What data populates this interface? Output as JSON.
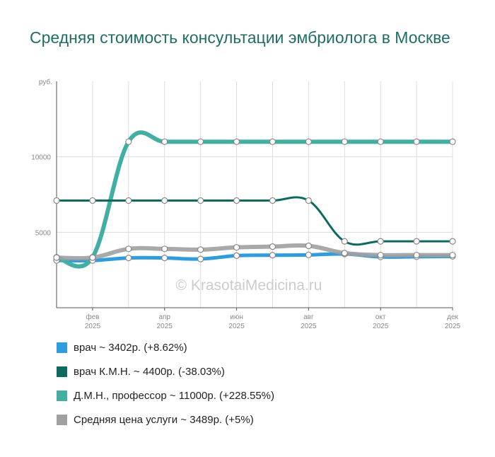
{
  "chart_data": {
    "type": "line",
    "title": "Средняя стоимость консультации эмбриолога в Москве",
    "ylabel": "руб.",
    "ylim": [
      0,
      15000
    ],
    "yticks": [
      5000,
      10000
    ],
    "x_ticks": [
      {
        "month": "фев",
        "year": "2025",
        "index": 1
      },
      {
        "month": "апр",
        "year": "2025",
        "index": 3
      },
      {
        "month": "июн",
        "year": "2025",
        "index": 5
      },
      {
        "month": "авг",
        "year": "2025",
        "index": 7
      },
      {
        "month": "окт",
        "year": "2025",
        "index": 9
      },
      {
        "month": "дек",
        "year": "2025",
        "index": 11
      }
    ],
    "grid": true,
    "watermark": "© KrasotaiMedicina.ru",
    "series": [
      {
        "name": "врач",
        "legend": "врач ~ 3402р. (+8.62%)",
        "color": "#2b9de0",
        "values": [
          3132,
          3132,
          3300,
          3300,
          3230,
          3450,
          3480,
          3500,
          3560,
          3370,
          3380,
          3402
        ]
      },
      {
        "name": "врач К.М.Н.",
        "legend": "врач К.М.Н. ~ 4400р. (-38.03%)",
        "color": "#0b6b5f",
        "values": [
          7100,
          7100,
          7100,
          7100,
          7100,
          7100,
          7100,
          7100,
          4400,
          4400,
          4400,
          4400
        ]
      },
      {
        "name": "Д.М.Н., профессор",
        "legend": "Д.М.Н., профессор ~ 11000р. (+228.55%)",
        "color": "#3fb0a2",
        "values": [
          3348,
          3348,
          11000,
          11000,
          11000,
          11000,
          11000,
          11000,
          11000,
          11000,
          11000,
          11000
        ]
      },
      {
        "name": "Средняя цена услуги",
        "legend": "Средняя цена услуги ~ 3489р. (+5%)",
        "color": "#a0a0a0",
        "values": [
          3323,
          3323,
          3900,
          3900,
          3850,
          4000,
          4050,
          4100,
          3620,
          3489,
          3489,
          3489
        ]
      }
    ]
  }
}
